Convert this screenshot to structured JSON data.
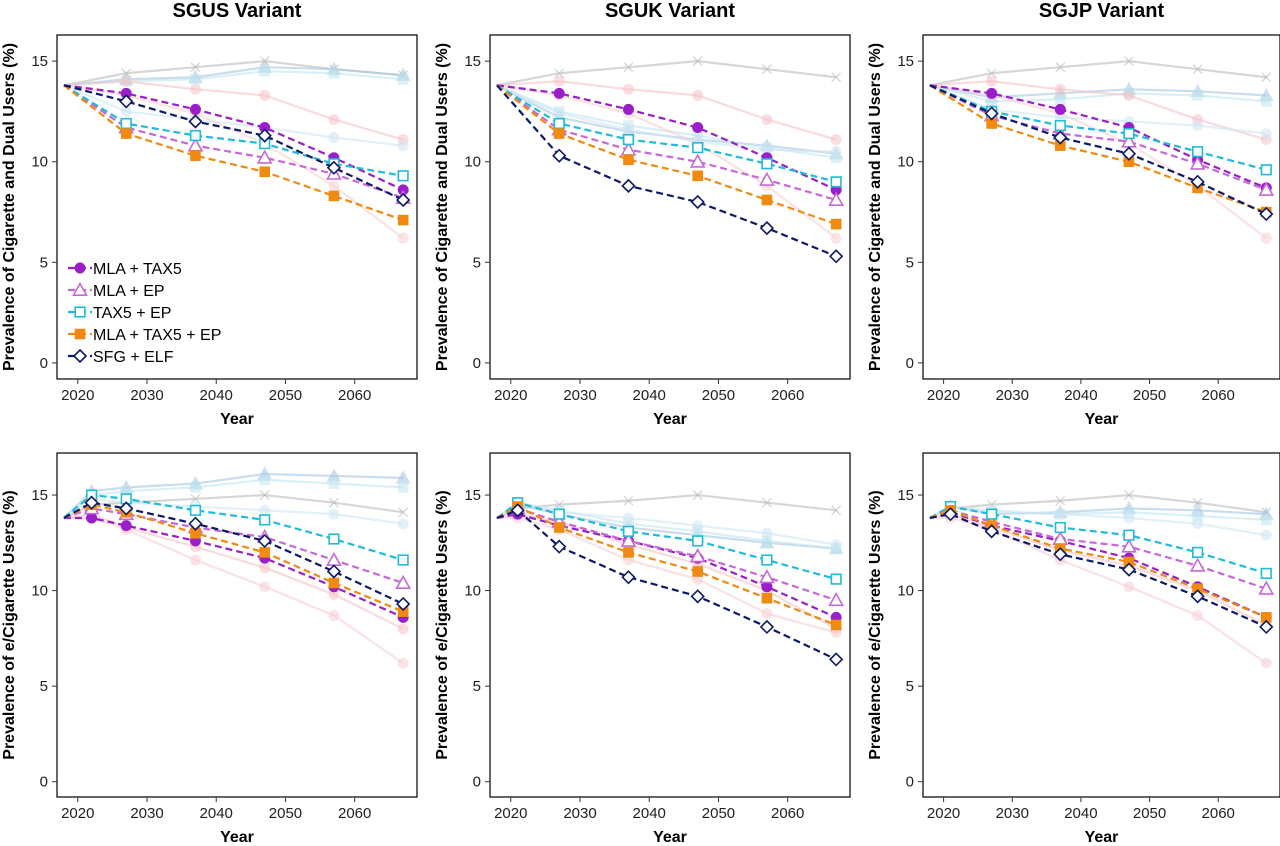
{
  "figure": {
    "ylabel_top": "Prevalence of Cigarette and Dual Users (%)",
    "ylabel_bottom": "Prevalence of e/Cigarette Users (%)",
    "xlabel": "Year"
  },
  "legend": {
    "placement": "bottom-left of first panel",
    "entries": [
      {
        "name": "MLA + TAX5",
        "marker": "circle-filled",
        "color": "#9a1fc9"
      },
      {
        "name": "MLA + EP",
        "marker": "triangle-open",
        "color": "#c768d8"
      },
      {
        "name": "TAX5 + EP",
        "marker": "square-open",
        "color": "#1fbcd9"
      },
      {
        "name": "MLA + TAX5 + EP",
        "marker": "square-filled",
        "color": "#f08a10"
      },
      {
        "name": "SFG + ELF",
        "marker": "diamond-open",
        "color": "#0d1a66"
      }
    ]
  },
  "chart_data": [
    {
      "type": "line",
      "title": "SGUS Variant",
      "xlabel": "Year",
      "ylabel": "Prevalence of Cigarette and Dual Users (%)",
      "xlim": [
        2017,
        2069
      ],
      "ylim": [
        -0.8,
        16.3
      ],
      "xticks": [
        2020,
        2030,
        2040,
        2050,
        2060
      ],
      "yticks": [
        0,
        5,
        10,
        15
      ],
      "grid": false,
      "x": [
        2018,
        2027,
        2037,
        2047,
        2057,
        2067
      ],
      "series": [
        {
          "name": "MLA + TAX5",
          "values": [
            13.8,
            13.4,
            12.6,
            11.7,
            10.2,
            8.6
          ]
        },
        {
          "name": "MLA + EP",
          "values": [
            13.8,
            11.7,
            10.8,
            10.2,
            9.4,
            8.2
          ]
        },
        {
          "name": "TAX5 + EP",
          "values": [
            13.8,
            11.9,
            11.3,
            10.9,
            9.9,
            9.3
          ]
        },
        {
          "name": "MLA + TAX5 + EP",
          "values": [
            13.8,
            11.4,
            10.3,
            9.5,
            8.3,
            7.1
          ]
        },
        {
          "name": "SFG + ELF",
          "values": [
            13.8,
            13.0,
            12.0,
            11.3,
            9.7,
            8.1
          ]
        }
      ],
      "background_series": [
        {
          "color": "#bbbbbb",
          "marker": "x",
          "values": [
            13.8,
            14.4,
            14.7,
            15.0,
            14.6,
            14.3
          ]
        },
        {
          "color": "#a7c7e3",
          "marker": "triangle",
          "values": [
            13.8,
            14.1,
            14.2,
            14.7,
            14.6,
            14.3
          ]
        },
        {
          "color": "#bfe6f0",
          "marker": "square",
          "values": [
            13.8,
            14.0,
            14.1,
            14.5,
            14.4,
            14.1
          ]
        },
        {
          "color": "#f6c3c6",
          "marker": "circle",
          "values": [
            13.8,
            14.0,
            13.6,
            13.3,
            12.1,
            11.1
          ]
        },
        {
          "color": "#f8cfd2",
          "marker": "circle",
          "values": [
            13.8,
            13.3,
            12.4,
            10.9,
            8.8,
            6.2
          ]
        },
        {
          "color": "#cfe6f3",
          "marker": "circle",
          "values": [
            13.8,
            12.5,
            12.1,
            11.7,
            11.2,
            10.8
          ]
        }
      ]
    },
    {
      "type": "line",
      "title": "SGUK Variant",
      "xlabel": "Year",
      "ylabel": "Prevalence of Cigarette and Dual Users (%)",
      "xlim": [
        2017,
        2069
      ],
      "ylim": [
        -0.8,
        16.3
      ],
      "xticks": [
        2020,
        2030,
        2040,
        2050,
        2060
      ],
      "yticks": [
        0,
        5,
        10,
        15
      ],
      "grid": false,
      "x": [
        2018,
        2027,
        2037,
        2047,
        2057,
        2067
      ],
      "series": [
        {
          "name": "MLA + TAX5",
          "values": [
            13.8,
            13.4,
            12.6,
            11.7,
            10.2,
            8.6
          ]
        },
        {
          "name": "MLA + EP",
          "values": [
            13.8,
            11.6,
            10.6,
            10.0,
            9.1,
            8.1
          ]
        },
        {
          "name": "TAX5 + EP",
          "values": [
            13.8,
            11.9,
            11.1,
            10.7,
            9.9,
            9.0
          ]
        },
        {
          "name": "MLA + TAX5 + EP",
          "values": [
            13.8,
            11.4,
            10.1,
            9.3,
            8.1,
            6.9
          ]
        },
        {
          "name": "SFG + ELF",
          "values": [
            13.8,
            10.3,
            8.8,
            8.0,
            6.7,
            5.3
          ]
        }
      ],
      "background_series": [
        {
          "color": "#bbbbbb",
          "marker": "x",
          "values": [
            13.8,
            14.4,
            14.7,
            15.0,
            14.6,
            14.2
          ]
        },
        {
          "color": "#a7c7e3",
          "marker": "triangle",
          "values": [
            13.8,
            12.2,
            11.5,
            11.1,
            10.8,
            10.4
          ]
        },
        {
          "color": "#bfe6f0",
          "marker": "square",
          "values": [
            13.8,
            12.5,
            11.8,
            11.3,
            10.7,
            10.2
          ]
        },
        {
          "color": "#f6c3c6",
          "marker": "circle",
          "values": [
            13.8,
            14.0,
            13.6,
            13.3,
            12.1,
            11.1
          ]
        },
        {
          "color": "#f8cfd2",
          "marker": "circle",
          "values": [
            13.8,
            13.3,
            12.4,
            10.9,
            8.8,
            6.2
          ]
        },
        {
          "color": "#cfe6f3",
          "marker": "circle",
          "values": [
            13.8,
            12.4,
            11.6,
            11.0,
            10.6,
            10.5
          ]
        }
      ]
    },
    {
      "type": "line",
      "title": "SGJP Variant",
      "xlabel": "Year",
      "ylabel": "Prevalence of Cigarette and Dual Users (%)",
      "xlim": [
        2017,
        2069
      ],
      "ylim": [
        -0.8,
        16.3
      ],
      "xticks": [
        2020,
        2030,
        2040,
        2050,
        2060
      ],
      "yticks": [
        0,
        5,
        10,
        15
      ],
      "grid": false,
      "x": [
        2018,
        2027,
        2037,
        2047,
        2057,
        2067
      ],
      "series": [
        {
          "name": "MLA + TAX5",
          "values": [
            13.8,
            13.4,
            12.6,
            11.7,
            10.1,
            8.7
          ]
        },
        {
          "name": "MLA + EP",
          "values": [
            13.8,
            12.3,
            11.4,
            11.0,
            9.9,
            8.6
          ]
        },
        {
          "name": "TAX5 + EP",
          "values": [
            13.8,
            12.5,
            11.8,
            11.4,
            10.5,
            9.6
          ]
        },
        {
          "name": "MLA + TAX5 + EP",
          "values": [
            13.8,
            11.9,
            10.8,
            10.0,
            8.7,
            7.5
          ]
        },
        {
          "name": "SFG + ELF",
          "values": [
            13.8,
            12.4,
            11.2,
            10.4,
            9.0,
            7.4
          ]
        }
      ],
      "background_series": [
        {
          "color": "#bbbbbb",
          "marker": "x",
          "values": [
            13.8,
            14.4,
            14.7,
            15.0,
            14.6,
            14.2
          ]
        },
        {
          "color": "#a7c7e3",
          "marker": "triangle",
          "values": [
            13.8,
            13.2,
            13.4,
            13.6,
            13.5,
            13.3
          ]
        },
        {
          "color": "#bfe6f0",
          "marker": "square",
          "values": [
            13.8,
            13.0,
            13.1,
            13.4,
            13.3,
            13.0
          ]
        },
        {
          "color": "#f6c3c6",
          "marker": "circle",
          "values": [
            13.8,
            14.0,
            13.6,
            13.3,
            12.1,
            11.1
          ]
        },
        {
          "color": "#f8cfd2",
          "marker": "circle",
          "values": [
            13.8,
            13.3,
            12.4,
            10.9,
            8.8,
            6.2
          ]
        },
        {
          "color": "#cfe6f3",
          "marker": "circle",
          "values": [
            13.8,
            12.6,
            12.2,
            12.0,
            11.8,
            11.4
          ]
        }
      ]
    },
    {
      "type": "line",
      "title": "",
      "xlabel": "Year",
      "ylabel": "Prevalence of e/Cigarette Users (%)",
      "xlim": [
        2017,
        2069
      ],
      "ylim": [
        -0.8,
        17.2
      ],
      "xticks": [
        2020,
        2030,
        2040,
        2050,
        2060
      ],
      "yticks": [
        0,
        5,
        10,
        15
      ],
      "grid": false,
      "x": [
        2018,
        2022,
        2027,
        2037,
        2047,
        2057,
        2067
      ],
      "series": [
        {
          "name": "MLA + TAX5",
          "values": [
            13.8,
            13.8,
            13.4,
            12.6,
            11.7,
            10.2,
            8.6
          ]
        },
        {
          "name": "MLA + EP",
          "values": [
            13.8,
            14.3,
            14.0,
            13.3,
            12.8,
            11.6,
            10.4
          ]
        },
        {
          "name": "TAX5 + EP",
          "values": [
            13.8,
            15.0,
            14.8,
            14.2,
            13.7,
            12.7,
            11.6
          ]
        },
        {
          "name": "MLA + TAX5 + EP",
          "values": [
            13.8,
            14.5,
            14.1,
            13.0,
            12.0,
            10.4,
            8.9
          ]
        },
        {
          "name": "SFG + ELF",
          "values": [
            13.8,
            14.6,
            14.3,
            13.5,
            12.6,
            11.0,
            9.3
          ]
        }
      ],
      "background_series": [
        {
          "color": "#bbbbbb",
          "marker": "x",
          "values": [
            13.8,
            14.5,
            14.6,
            14.8,
            15.0,
            14.6,
            14.1
          ]
        },
        {
          "color": "#a7c7e3",
          "marker": "triangle",
          "values": [
            13.8,
            15.2,
            15.4,
            15.6,
            16.1,
            16.0,
            15.9
          ]
        },
        {
          "color": "#bfe6f0",
          "marker": "square",
          "values": [
            13.8,
            15.0,
            15.2,
            15.4,
            15.8,
            15.6,
            15.4
          ]
        },
        {
          "color": "#f6c3c6",
          "marker": "circle",
          "values": [
            13.8,
            14.0,
            13.3,
            12.3,
            11.2,
            9.8,
            8.0
          ]
        },
        {
          "color": "#f8cfd2",
          "marker": "circle",
          "values": [
            13.8,
            13.8,
            13.2,
            11.6,
            10.2,
            8.7,
            6.2
          ]
        },
        {
          "color": "#cfe6f3",
          "marker": "circle",
          "values": [
            13.8,
            14.8,
            14.6,
            14.4,
            14.2,
            14.0,
            13.5
          ]
        }
      ]
    },
    {
      "type": "line",
      "title": "",
      "xlabel": "Year",
      "ylabel": "Prevalence of e/Cigarette Users (%)",
      "xlim": [
        2017,
        2069
      ],
      "ylim": [
        -0.8,
        17.2
      ],
      "xticks": [
        2020,
        2030,
        2040,
        2050,
        2060
      ],
      "yticks": [
        0,
        5,
        10,
        15
      ],
      "grid": false,
      "x": [
        2018,
        2021,
        2027,
        2037,
        2047,
        2057,
        2067
      ],
      "series": [
        {
          "name": "MLA + TAX5",
          "values": [
            13.8,
            14.0,
            13.4,
            12.6,
            11.7,
            10.2,
            8.6
          ]
        },
        {
          "name": "MLA + EP",
          "values": [
            13.8,
            14.3,
            13.6,
            12.6,
            11.8,
            10.7,
            9.5
          ]
        },
        {
          "name": "TAX5 + EP",
          "values": [
            13.8,
            14.6,
            14.0,
            13.1,
            12.6,
            11.6,
            10.6
          ]
        },
        {
          "name": "MLA + TAX5 + EP",
          "values": [
            13.8,
            14.4,
            13.3,
            12.0,
            11.0,
            9.6,
            8.2
          ]
        },
        {
          "name": "SFG + ELF",
          "values": [
            13.8,
            14.2,
            12.3,
            10.7,
            9.7,
            8.1,
            6.4
          ]
        }
      ],
      "background_series": [
        {
          "color": "#bbbbbb",
          "marker": "x",
          "values": [
            13.8,
            14.3,
            14.5,
            14.7,
            15.0,
            14.6,
            14.2
          ]
        },
        {
          "color": "#a7c7e3",
          "marker": "triangle",
          "values": [
            13.8,
            14.5,
            14.0,
            13.3,
            12.9,
            12.5,
            12.2
          ]
        },
        {
          "color": "#bfe6f0",
          "marker": "square",
          "values": [
            13.8,
            14.6,
            14.2,
            13.5,
            13.1,
            12.6,
            12.2
          ]
        },
        {
          "color": "#f6c3c6",
          "marker": "circle",
          "values": [
            13.8,
            14.0,
            13.6,
            12.4,
            11.4,
            10.0,
            8.0
          ]
        },
        {
          "color": "#f8cfd2",
          "marker": "circle",
          "values": [
            13.8,
            13.8,
            13.2,
            11.6,
            10.6,
            8.8,
            7.8
          ]
        },
        {
          "color": "#cfe6f3",
          "marker": "circle",
          "values": [
            13.8,
            14.6,
            14.1,
            13.8,
            13.4,
            13.0,
            12.4
          ]
        }
      ]
    },
    {
      "type": "line",
      "title": "",
      "xlabel": "Year",
      "ylabel": "Prevalence of e/Cigarette Users (%)",
      "xlim": [
        2017,
        2069
      ],
      "ylim": [
        -0.8,
        17.2
      ],
      "xticks": [
        2020,
        2030,
        2040,
        2050,
        2060
      ],
      "yticks": [
        0,
        5,
        10,
        15
      ],
      "grid": false,
      "x": [
        2018,
        2021,
        2027,
        2037,
        2047,
        2057,
        2067
      ],
      "series": [
        {
          "name": "MLA + TAX5",
          "values": [
            13.8,
            14.1,
            13.4,
            12.6,
            11.7,
            10.2,
            8.6
          ]
        },
        {
          "name": "MLA + EP",
          "values": [
            13.8,
            14.2,
            13.6,
            12.7,
            12.3,
            11.3,
            10.1
          ]
        },
        {
          "name": "TAX5 + EP",
          "values": [
            13.8,
            14.4,
            14.0,
            13.3,
            12.9,
            12.0,
            10.9
          ]
        },
        {
          "name": "MLA + TAX5 + EP",
          "values": [
            13.8,
            14.2,
            13.4,
            12.2,
            11.5,
            10.1,
            8.6
          ]
        },
        {
          "name": "SFG + ELF",
          "values": [
            13.8,
            14.0,
            13.1,
            11.9,
            11.1,
            9.7,
            8.1
          ]
        }
      ],
      "background_series": [
        {
          "color": "#bbbbbb",
          "marker": "x",
          "values": [
            13.8,
            14.3,
            14.5,
            14.7,
            15.0,
            14.6,
            14.1
          ]
        },
        {
          "color": "#a7c7e3",
          "marker": "triangle",
          "values": [
            13.8,
            14.4,
            14.0,
            14.1,
            14.3,
            14.2,
            14.0
          ]
        },
        {
          "color": "#bfe6f0",
          "marker": "square",
          "values": [
            13.8,
            14.4,
            14.1,
            14.0,
            14.1,
            13.9,
            13.7
          ]
        },
        {
          "color": "#f6c3c6",
          "marker": "circle",
          "values": [
            13.8,
            14.0,
            13.3,
            12.1,
            11.3,
            10.0,
            8.2
          ]
        },
        {
          "color": "#f8cfd2",
          "marker": "circle",
          "values": [
            13.8,
            13.8,
            13.2,
            11.6,
            10.2,
            8.7,
            6.2
          ]
        },
        {
          "color": "#cfe6f3",
          "marker": "circle",
          "values": [
            13.8,
            14.4,
            14.2,
            14.0,
            13.8,
            13.5,
            12.9
          ]
        }
      ]
    }
  ]
}
